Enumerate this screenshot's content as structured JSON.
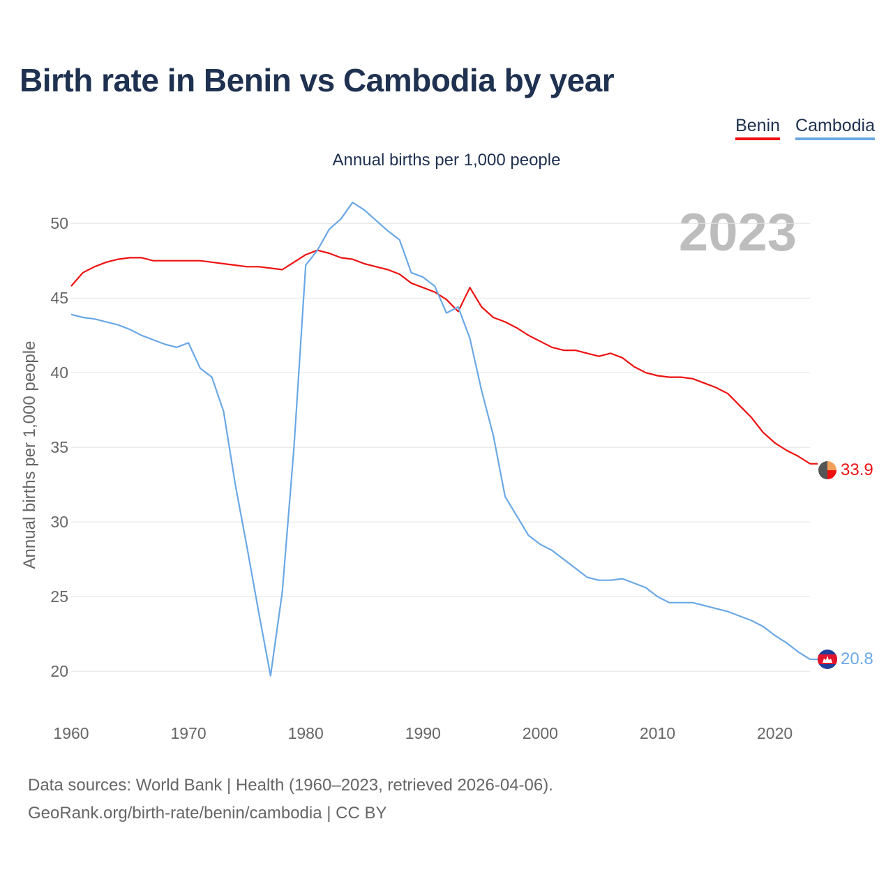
{
  "title": "Birth rate in Benin vs Cambodia by year",
  "subtitle": "Annual births per 1,000 people",
  "year_display": "2023",
  "legend": [
    {
      "label": "Benin",
      "color": "#ee1111"
    },
    {
      "label": "Cambodia",
      "color": "#6aa8e6"
    }
  ],
  "footer": {
    "line1": "Data sources: World Bank | Health (1960–2023, retrieved 2026-04-06).",
    "line2": "GeoRank.org/birth-rate/benin/cambodia | CC BY"
  },
  "chart_data": {
    "type": "line",
    "title": "Birth rate in Benin vs Cambodia by year",
    "ylabel": "Annual births per 1,000 people",
    "xlabel": "",
    "xlim": [
      1960,
      2023
    ],
    "ylim": [
      18,
      53
    ],
    "x_ticks": [
      1960,
      1970,
      1980,
      1990,
      2000,
      2010,
      2020
    ],
    "y_ticks": [
      20,
      25,
      30,
      35,
      40,
      45,
      50
    ],
    "grid": true,
    "x": [
      1960,
      1961,
      1962,
      1963,
      1964,
      1965,
      1966,
      1967,
      1968,
      1969,
      1970,
      1971,
      1972,
      1973,
      1974,
      1975,
      1976,
      1977,
      1978,
      1979,
      1980,
      1981,
      1982,
      1983,
      1984,
      1985,
      1986,
      1987,
      1988,
      1989,
      1990,
      1991,
      1992,
      1993,
      1994,
      1995,
      1996,
      1997,
      1998,
      1999,
      2000,
      2001,
      2002,
      2003,
      2004,
      2005,
      2006,
      2007,
      2008,
      2009,
      2010,
      2011,
      2012,
      2013,
      2014,
      2015,
      2016,
      2017,
      2018,
      2019,
      2020,
      2021,
      2022,
      2023
    ],
    "series": [
      {
        "name": "Benin",
        "color": "#ee1111",
        "end_label": "33.9",
        "values": [
          45.8,
          46.7,
          47.1,
          47.4,
          47.6,
          47.7,
          47.7,
          47.5,
          47.5,
          47.5,
          47.5,
          47.5,
          47.4,
          47.3,
          47.2,
          47.1,
          47.1,
          47.0,
          46.9,
          47.4,
          47.9,
          48.2,
          48.0,
          47.7,
          47.6,
          47.3,
          47.1,
          46.9,
          46.6,
          46.0,
          45.7,
          45.4,
          44.9,
          44.1,
          45.7,
          44.4,
          43.7,
          43.4,
          43.0,
          42.5,
          42.1,
          41.7,
          41.5,
          41.5,
          41.3,
          41.1,
          41.3,
          41.0,
          40.4,
          40.0,
          39.8,
          39.7,
          39.7,
          39.6,
          39.3,
          39.0,
          38.6,
          37.8,
          37.0,
          36.0,
          35.3,
          34.8,
          34.4,
          33.9
        ]
      },
      {
        "name": "Cambodia",
        "color": "#6aa8e6",
        "end_label": "20.8",
        "values": [
          43.9,
          43.7,
          43.6,
          43.4,
          43.2,
          42.9,
          42.5,
          42.2,
          41.9,
          41.7,
          42.0,
          40.3,
          39.7,
          37.4,
          32.5,
          28.3,
          23.9,
          19.7,
          25.3,
          35.0,
          47.2,
          48.2,
          49.6,
          50.3,
          51.4,
          50.9,
          50.2,
          49.5,
          48.9,
          46.7,
          46.4,
          45.8,
          44.0,
          44.4,
          42.3,
          38.8,
          35.8,
          31.7,
          30.4,
          29.1,
          28.5,
          28.1,
          27.5,
          26.9,
          26.3,
          26.1,
          26.1,
          26.2,
          25.9,
          25.6,
          25.0,
          24.6,
          24.6,
          24.6,
          24.4,
          24.2,
          24.0,
          23.7,
          23.4,
          23.0,
          22.4,
          21.9,
          21.3,
          20.8
        ]
      }
    ]
  }
}
